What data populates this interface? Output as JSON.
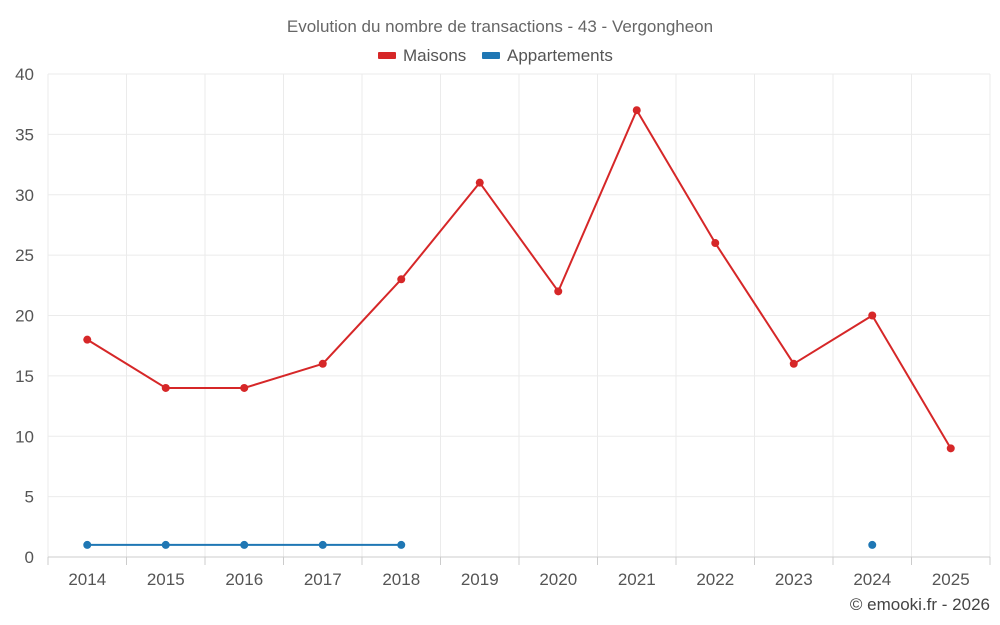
{
  "chart_data": {
    "type": "line",
    "title": "Evolution du nombre de transactions - 43 - Vergongheon",
    "categories": [
      "2014",
      "2015",
      "2016",
      "2017",
      "2018",
      "2019",
      "2020",
      "2021",
      "2022",
      "2023",
      "2024",
      "2025"
    ],
    "series": [
      {
        "name": "Maisons",
        "color": "#d62728",
        "values": [
          18,
          14,
          14,
          16,
          23,
          31,
          22,
          37,
          26,
          16,
          20,
          9
        ]
      },
      {
        "name": "Appartements",
        "color": "#1f77b4",
        "values": [
          1,
          1,
          1,
          1,
          1,
          null,
          null,
          null,
          null,
          null,
          1,
          null
        ]
      }
    ],
    "y_ticks": [
      "0",
      "5",
      "10",
      "15",
      "20",
      "25",
      "30",
      "35",
      "40"
    ],
    "ylim": [
      0,
      40
    ],
    "grid": true,
    "legend_position": "top-center"
  },
  "credit": "© emooki.fr - 2026"
}
